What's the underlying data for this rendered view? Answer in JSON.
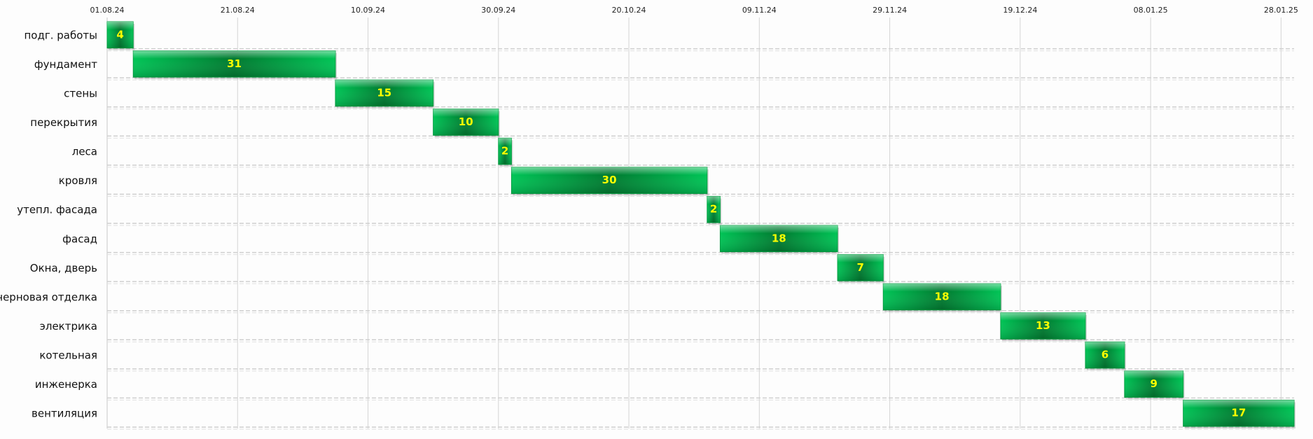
{
  "chart_data": {
    "type": "gantt",
    "categories": [
      "подг. работы",
      "фундамент",
      "стены",
      "перекрытия",
      "леса",
      "кровля",
      "утепл. фасада",
      "фасад",
      "Окна, дверь",
      "черновая отделка",
      "электрика",
      "котельная",
      "инженерка",
      "вентиляция"
    ],
    "values": [
      4,
      31,
      15,
      10,
      2,
      30,
      2,
      18,
      7,
      18,
      13,
      6,
      9,
      17
    ],
    "color": "#00b050",
    "xlim": [
      0,
      182
    ],
    "xticks": [
      {
        "value": 0,
        "label": "01.08.24"
      },
      {
        "value": 20,
        "label": "21.08.24"
      },
      {
        "value": 40,
        "label": "10.09.24"
      },
      {
        "value": 60,
        "label": "30.09.24"
      },
      {
        "value": 80,
        "label": "20.10.24"
      },
      {
        "value": 100,
        "label": "09.11.24"
      },
      {
        "value": 120,
        "label": "29.11.24"
      },
      {
        "value": 140,
        "label": "19.12.24"
      },
      {
        "value": 160,
        "label": "08.01.25"
      },
      {
        "value": 180,
        "label": "28.01.25"
      }
    ],
    "grid": true
  }
}
